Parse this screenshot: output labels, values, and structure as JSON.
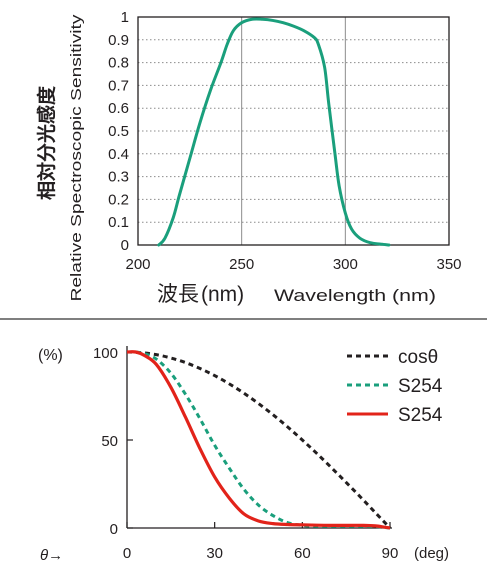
{
  "colors": {
    "grid": "#8c8c8c",
    "axis": "#231f20",
    "teal": "#1a9f7c",
    "red": "#e2231a",
    "black": "#231f20",
    "divider": "#555555"
  },
  "chart_data": [
    {
      "type": "line",
      "title": "",
      "xlabel_ja": "波長",
      "xlabel_unit": "(nm)",
      "xlabel_en": "Wavelength (nm)",
      "ylabel_ja": "相対分光感度",
      "ylabel_en": "Relative Spectroscopic Sensitivity",
      "xlim": [
        200,
        350
      ],
      "ylim": [
        0,
        1
      ],
      "x_ticks": [
        "200",
        "250",
        "300",
        "350"
      ],
      "y_ticks": [
        "0",
        "0.1",
        "0.2",
        "0.3",
        "0.4",
        "0.5",
        "0.6",
        "0.7",
        "0.8",
        "0.9",
        "1"
      ],
      "grid": true,
      "series": [
        {
          "color": "#1a9f7c",
          "x": [
            210,
            213,
            217,
            220,
            225,
            230,
            235,
            240,
            243,
            246,
            250,
            255,
            260,
            265,
            270,
            275,
            280,
            285,
            287,
            290,
            292,
            295,
            297,
            300,
            303,
            307,
            312,
            317,
            321
          ],
          "y": [
            0,
            0.03,
            0.12,
            0.22,
            0.38,
            0.54,
            0.68,
            0.8,
            0.88,
            0.94,
            0.975,
            0.99,
            0.99,
            0.985,
            0.975,
            0.96,
            0.94,
            0.91,
            0.88,
            0.78,
            0.62,
            0.4,
            0.26,
            0.14,
            0.07,
            0.03,
            0.01,
            0.004,
            0
          ]
        }
      ]
    },
    {
      "type": "line",
      "xlabel_symbol": "θ→",
      "xlabel_unit": "(deg)",
      "ylabel_unit": "(%)",
      "xlim": [
        0,
        90
      ],
      "ylim": [
        0,
        100
      ],
      "x_ticks": [
        "0",
        "30",
        "60",
        "90"
      ],
      "y_ticks": [
        "0",
        "50",
        "100"
      ],
      "grid": false,
      "legend_position": "top-right",
      "series": [
        {
          "name": "cosθ",
          "color": "#231f20",
          "style": "dashed",
          "x": [
            0,
            5,
            10,
            15,
            20,
            25,
            30,
            35,
            40,
            45,
            50,
            55,
            60,
            65,
            70,
            75,
            80,
            85,
            90
          ],
          "y": [
            100,
            99.6,
            98.5,
            96.6,
            94.0,
            90.6,
            86.6,
            81.9,
            76.6,
            70.7,
            64.3,
            57.4,
            50.0,
            42.3,
            34.2,
            25.9,
            17.4,
            8.7,
            0
          ]
        },
        {
          "name": "S254",
          "color": "#1a9f7c",
          "style": "dashed",
          "x": [
            0,
            3,
            6,
            10,
            15,
            20,
            25,
            30,
            35,
            40,
            45,
            50,
            55,
            60,
            65,
            70,
            75,
            80,
            85,
            90
          ],
          "y": [
            100,
            100,
            99,
            96,
            88,
            76,
            62,
            47,
            34,
            22,
            13,
            7,
            3,
            1.5,
            1.0,
            1.0,
            1.0,
            1.0,
            0.8,
            0
          ]
        },
        {
          "name": "S254",
          "color": "#e2231a",
          "style": "solid",
          "x": [
            0,
            3,
            6,
            10,
            15,
            20,
            25,
            30,
            35,
            40,
            45,
            50,
            55,
            60,
            65,
            70,
            75,
            80,
            85,
            90
          ],
          "y": [
            100,
            100,
            98,
            93,
            80,
            63,
            45,
            29,
            17,
            8,
            4,
            2.5,
            2,
            1.8,
            1.6,
            1.5,
            1.5,
            1.5,
            1.2,
            0
          ]
        }
      ]
    }
  ]
}
